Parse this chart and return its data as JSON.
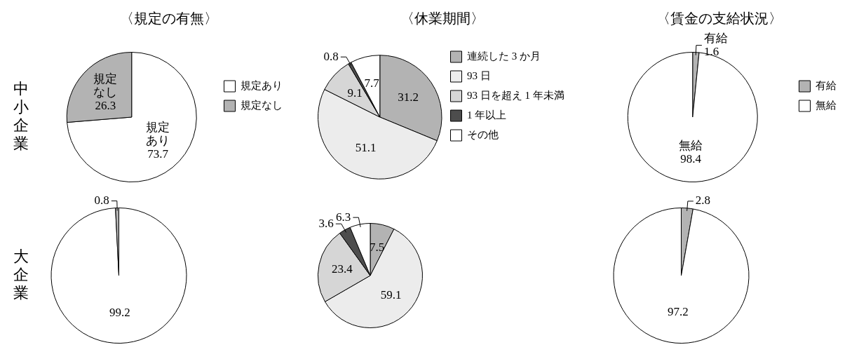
{
  "chart_data": [
    {
      "type": "pie",
      "title": "〈規定の有無〉",
      "ylabel": "中小企業",
      "categories": [
        "規定あり",
        "規定なし"
      ],
      "values": [
        73.7,
        26.3
      ],
      "colors": [
        "#ffffff",
        "#b3b3b3"
      ],
      "value_labels": [
        "規定あり 73.7",
        "規定なし 26.3"
      ],
      "legend": "right"
    },
    {
      "type": "pie",
      "title": "〈休業期間〉",
      "categories": [
        "連続した 3 か月",
        "93 日",
        "93 日を超え 1 年未満",
        "1 年以上",
        "その他"
      ],
      "values": [
        31.2,
        51.1,
        9.1,
        0.8,
        7.7
      ],
      "colors": [
        "#b3b3b3",
        "#ececec",
        "#d6d6d6",
        "#4d4d4d",
        "#ffffff"
      ],
      "value_labels": [
        "31.2",
        "51.1",
        "9.1",
        "0.8",
        "7.7"
      ],
      "legend": "right"
    },
    {
      "type": "pie",
      "title": "〈賃金の支給状況〉",
      "categories": [
        "有給",
        "無給"
      ],
      "values": [
        1.6,
        98.4
      ],
      "colors": [
        "#b3b3b3",
        "#ffffff"
      ],
      "value_labels": [
        "有給 1.6",
        "無給 98.4"
      ],
      "legend": "right"
    },
    {
      "type": "pie",
      "ylabel": "大企業",
      "categories": [
        null,
        null
      ],
      "values": [
        99.2,
        0.8
      ],
      "colors": [
        "#ffffff",
        "#b3b3b3"
      ],
      "value_labels": [
        "99.2",
        "0.8"
      ]
    },
    {
      "type": "pie",
      "categories": [
        null,
        null,
        null,
        null,
        null
      ],
      "values": [
        7.5,
        59.1,
        23.4,
        3.6,
        6.3
      ],
      "colors": [
        "#b3b3b3",
        "#ececec",
        "#d6d6d6",
        "#4d4d4d",
        "#ffffff"
      ],
      "value_labels": [
        "7.5",
        "59.1",
        "23.4",
        "3.6",
        "6.3"
      ]
    },
    {
      "type": "pie",
      "categories": [
        null,
        null
      ],
      "values": [
        2.8,
        97.2
      ],
      "colors": [
        "#b3b3b3",
        "#ffffff"
      ],
      "value_labels": [
        "2.8",
        "97.2"
      ]
    }
  ]
}
